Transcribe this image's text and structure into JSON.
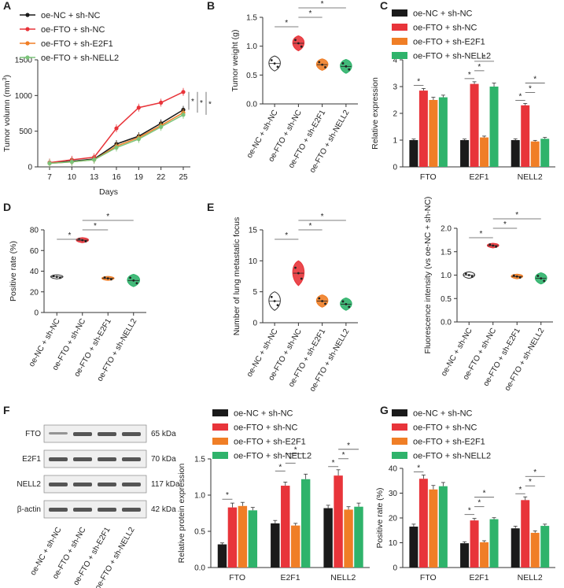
{
  "colors": {
    "black": "#1a1a1a",
    "red": "#e8343a",
    "orange": "#f07e26",
    "green": "#2fb36b",
    "light_green": "#7cc47a",
    "axis": "#333333",
    "blot_bg": "#efefef",
    "band": "#3a3a3a"
  },
  "groups": [
    "oe-NC + sh-NC",
    "oe-FTO + sh-NC",
    "oe-FTO + sh-E2F1",
    "oe-FTO + sh-NELL2"
  ],
  "chart_data": [
    {
      "panel": "A",
      "type": "line",
      "ylabel_main": "Tumor volumn (mm",
      "ylabel_sup": "3",
      "ylabel_end": ")",
      "xlabel": "Days",
      "x": [
        7,
        10,
        13,
        16,
        19,
        22,
        25
      ],
      "ylim": [
        0,
        1500
      ],
      "yticks": [
        0,
        500,
        1000,
        1500
      ],
      "series": [
        {
          "name": "oe-NC + sh-NC",
          "color": "#1a1a1a",
          "values": [
            55,
            80,
            110,
            320,
            430,
            610,
            800
          ]
        },
        {
          "name": "oe-FTO + sh-NC",
          "color": "#e8343a",
          "values": [
            60,
            100,
            135,
            540,
            830,
            900,
            1050
          ]
        },
        {
          "name": "oe-FTO + sh-E2F1",
          "color": "#f07e26",
          "values": [
            50,
            70,
            100,
            290,
            410,
            580,
            760
          ]
        },
        {
          "name": "oe-FTO + sh-NELL2",
          "color": "#7cc47a",
          "values": [
            50,
            70,
            100,
            270,
            390,
            560,
            730
          ]
        }
      ],
      "sig": [
        "*",
        "*",
        "*"
      ]
    },
    {
      "panel": "B",
      "type": "violin",
      "ylabel": "Tumor weight (g)",
      "ylim": [
        0.0,
        1.5
      ],
      "yticks": [
        "0.0",
        "0.5",
        "1.0",
        "1.5"
      ],
      "values": [
        0.7,
        1.05,
        0.68,
        0.65
      ],
      "spread": [
        0.13,
        0.13,
        0.1,
        0.12
      ],
      "sig": [
        "*",
        "*",
        "*"
      ]
    },
    {
      "panel": "C",
      "type": "bar",
      "ylabel": "Relative expression",
      "ylim": [
        0,
        4
      ],
      "yticks": [
        0,
        1,
        2,
        3,
        4
      ],
      "categories": [
        "FTO",
        "E2F1",
        "NELL2"
      ],
      "series": [
        {
          "name": "oe-NC + sh-NC",
          "values": [
            1.0,
            1.0,
            1.0
          ],
          "err": [
            0.04,
            0.04,
            0.05
          ]
        },
        {
          "name": "oe-FTO + sh-NC",
          "values": [
            2.85,
            3.1,
            2.3
          ],
          "err": [
            0.08,
            0.08,
            0.07
          ]
        },
        {
          "name": "oe-FTO + sh-E2F1",
          "values": [
            2.5,
            1.1,
            0.95
          ],
          "err": [
            0.1,
            0.05,
            0.04
          ]
        },
        {
          "name": "oe-FTO + sh-NELL2",
          "values": [
            2.6,
            3.0,
            1.05
          ],
          "err": [
            0.08,
            0.13,
            0.05
          ]
        }
      ]
    },
    {
      "panel": "D",
      "type": "violin",
      "ylabel": "Positive rate (%)",
      "ylim": [
        0,
        80
      ],
      "yticks": [
        0,
        20,
        40,
        60,
        80
      ],
      "values": [
        34.5,
        70,
        33,
        31
      ],
      "spread": [
        2,
        2.5,
        2,
        6
      ],
      "sig": [
        "*",
        "*",
        "*"
      ]
    },
    {
      "panel": "E",
      "type": "violin",
      "ylabel": "Number of lung metastatic focus",
      "ylim": [
        0,
        15
      ],
      "yticks": [
        0,
        5,
        10,
        15
      ],
      "values": [
        3.5,
        8,
        3.5,
        3
      ],
      "spread": [
        1.5,
        2,
        1,
        1
      ],
      "sig": [
        "*",
        "*",
        "*"
      ]
    },
    {
      "panel": "E2",
      "type": "violin",
      "ylabel": "Fluorescence intensity (vs oe-NC + sh-NC)",
      "ylim": [
        0.0,
        2.0
      ],
      "yticks": [
        "0.0",
        "0.5",
        "1.0",
        "1.5",
        "2.0"
      ],
      "values": [
        1.0,
        1.63,
        0.97,
        0.93
      ],
      "spread": [
        0.07,
        0.05,
        0.05,
        0.12
      ],
      "sig": [
        "*",
        "*",
        "*"
      ]
    },
    {
      "panel": "F",
      "type": "bar",
      "ylabel": "Relative protein expression",
      "ylim": [
        0.0,
        1.5
      ],
      "yticks": [
        "0.0",
        "0.5",
        "1.0",
        "1.5"
      ],
      "categories": [
        "FTO",
        "E2F1",
        "NELL2"
      ],
      "series": [
        {
          "name": "oe-NC + sh-NC",
          "values": [
            0.32,
            0.61,
            0.82
          ],
          "err": [
            0.02,
            0.04,
            0.04
          ]
        },
        {
          "name": "oe-FTO + sh-NC",
          "values": [
            0.83,
            1.13,
            1.27
          ],
          "err": [
            0.06,
            0.05,
            0.08
          ]
        },
        {
          "name": "oe-FTO + sh-E2F1",
          "values": [
            0.85,
            0.58,
            0.8
          ],
          "err": [
            0.05,
            0.03,
            0.04
          ]
        },
        {
          "name": "oe-FTO + sh-NELL2",
          "values": [
            0.79,
            1.22,
            0.84
          ],
          "err": [
            0.04,
            0.07,
            0.05
          ]
        }
      ]
    },
    {
      "panel": "G",
      "type": "bar",
      "ylabel": "Positive rate (%)",
      "ylim": [
        0,
        40
      ],
      "yticks": [
        0,
        10,
        20,
        30,
        40
      ],
      "categories": [
        "FTO",
        "E2F1",
        "NELL2"
      ],
      "series": [
        {
          "name": "oe-NC + sh-NC",
          "values": [
            16.5,
            9.8,
            15.8
          ],
          "err": [
            1.0,
            0.6,
            0.9
          ]
        },
        {
          "name": "oe-FTO + sh-NC",
          "values": [
            35.8,
            19,
            27.2
          ],
          "err": [
            1.5,
            0.8,
            1.3
          ]
        },
        {
          "name": "oe-FTO + sh-E2F1",
          "values": [
            31.5,
            10.2,
            14
          ],
          "err": [
            1.6,
            0.6,
            0.8
          ]
        },
        {
          "name": "oe-FTO + sh-NELL2",
          "values": [
            32.8,
            19.5,
            16.8
          ],
          "err": [
            1.5,
            0.6,
            0.7
          ]
        }
      ]
    }
  ],
  "western_blot": {
    "rows": [
      {
        "label": "FTO",
        "kda": "65 kDa"
      },
      {
        "label": "E2F1",
        "kda": "70 kDa"
      },
      {
        "label": "NELL2",
        "kda": "117 kDa"
      },
      {
        "label": "β-actin",
        "kda": "42 kDa"
      }
    ]
  },
  "panel_letters": [
    "A",
    "B",
    "C",
    "D",
    "E",
    "F",
    "G"
  ]
}
